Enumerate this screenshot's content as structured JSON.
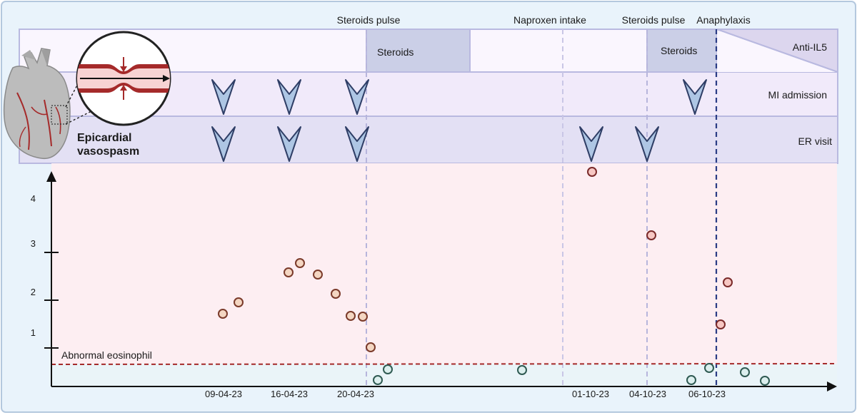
{
  "events": [
    {
      "label": "Steroids pulse"
    },
    {
      "label": "Naproxen intake"
    },
    {
      "label": "Steroids pulse"
    },
    {
      "label": "Anaphylaxis"
    }
  ],
  "treatments": {
    "steroids_1": "Steroids",
    "steroids_2": "Steroids",
    "anti_il5": "Anti-IL5"
  },
  "rows": {
    "mi_admission": "MI admission",
    "er_visit": "ER visit"
  },
  "illustration": {
    "line1": "Epicardial",
    "line2": "vasospasm"
  },
  "threshold_label": "Abnormal eosinophil",
  "colors": {
    "background_panel": "#e9f3fb",
    "treatment_band": "#faf6fe",
    "mi_band": "#f1eafa",
    "er_band": "#e3e0f4",
    "plot_area": "#fdeef2",
    "treatment_box": "#cbcfe7",
    "arrow_fill": "#aec6e4",
    "arrow_stroke": "#2f3e66",
    "threshold_line": "#a52a2a",
    "dashed_event": "#b7b5dc",
    "dashed_anaphylaxis": "#2a3c85"
  },
  "icons": [
    "heart-icon",
    "artery-constriction-icon",
    "down-arrow-icon"
  ],
  "chart_data": {
    "type": "scatter",
    "title": "",
    "xlabel": "",
    "ylabel": "",
    "x_ticks": [
      "09-04-23",
      "16-04-23",
      "20-04-23",
      "01-10-23",
      "04-10-23",
      "06-10-23"
    ],
    "y_ticks": [
      "1",
      "2",
      "3",
      "4"
    ],
    "ylim": [
      0,
      4.6
    ],
    "threshold": 0.5,
    "grid": false
  }
}
